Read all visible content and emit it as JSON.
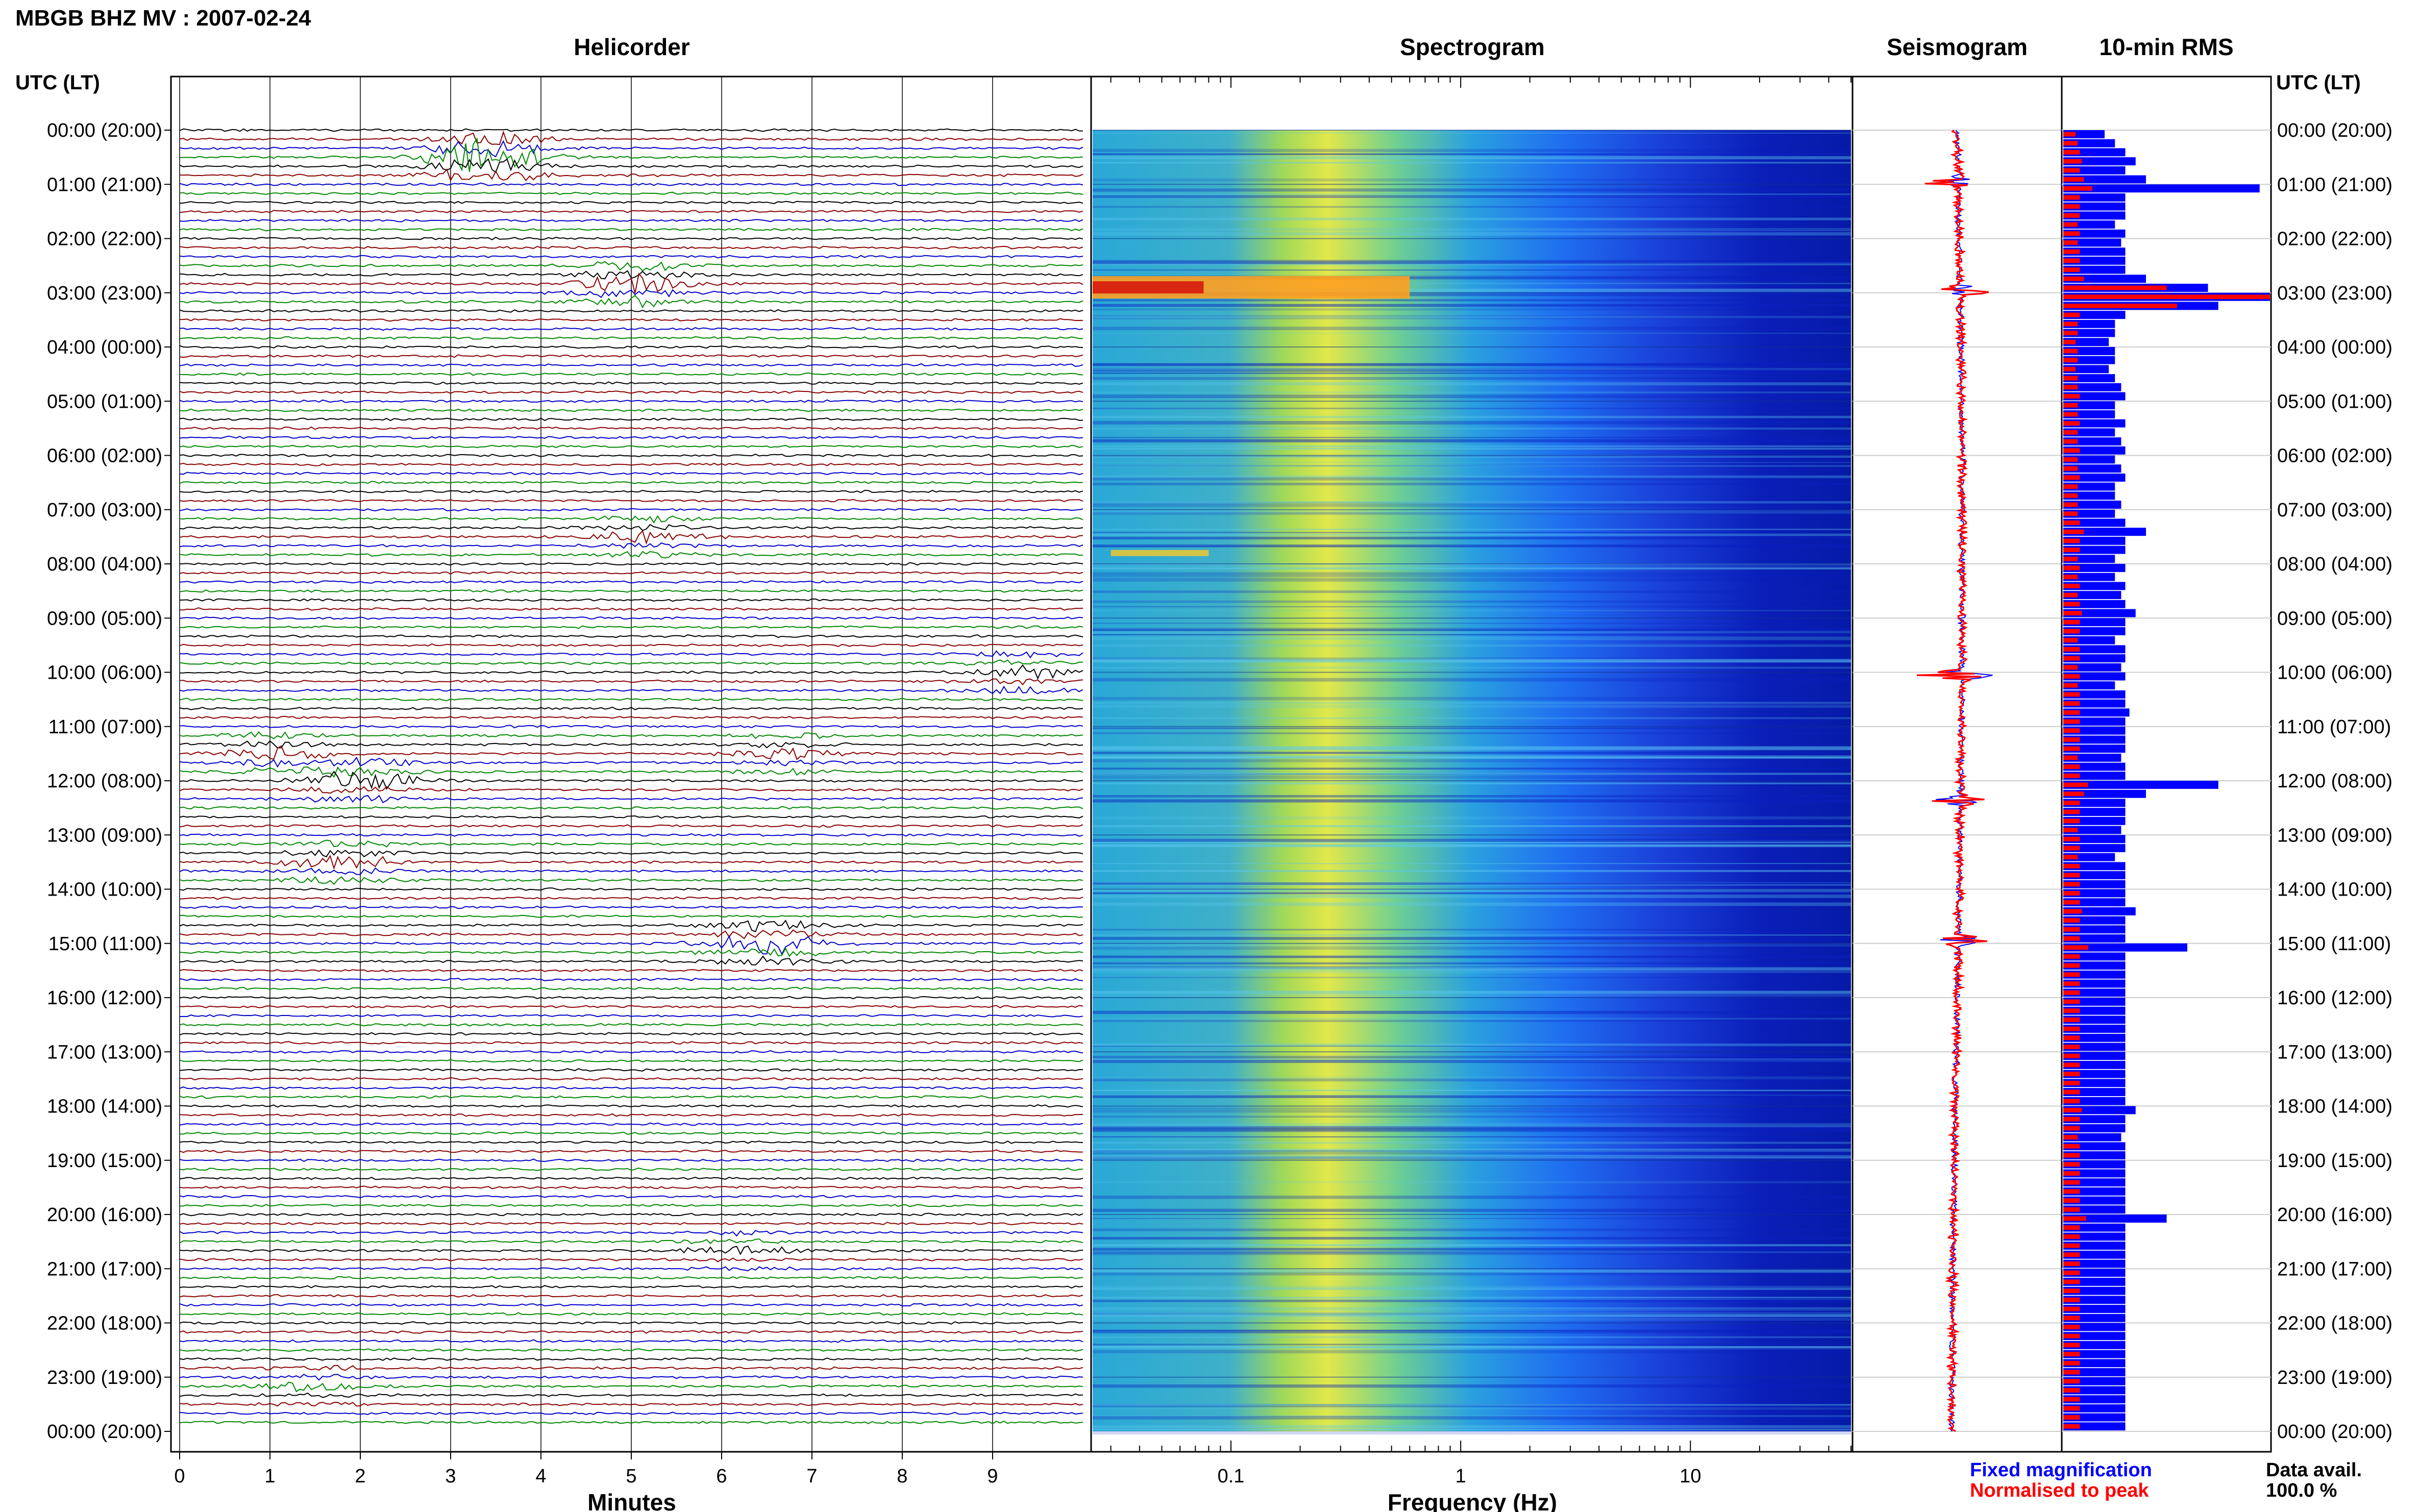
{
  "header": {
    "station_title": "MBGB BHZ MV : 2007-02-24",
    "utc_label": "UTC (LT)",
    "utc_label_right": "UTC (LT)"
  },
  "panels": {
    "helicorder": "Helicorder",
    "spectrogram": "Spectrogram",
    "seismogram": "Seismogram",
    "rms": "10-min RMS"
  },
  "legend": {
    "fixed": "Fixed magnification",
    "normalised": "Normalised to peak",
    "data_avail_label": "Data avail.",
    "data_avail_value": "100.0 %"
  },
  "colors": {
    "trace_cycle": [
      "#000000",
      "#8b0000",
      "#0000cc",
      "#008800"
    ],
    "fixed": "#0000ff",
    "normalised": "#ff0000"
  },
  "chart_data": [
    {
      "type": "line",
      "name": "helicorder",
      "xlabel": "Minutes",
      "x_ticks": [
        "0",
        "1",
        "2",
        "3",
        "4",
        "5",
        "6",
        "7",
        "8",
        "9"
      ],
      "xlim": [
        0,
        10
      ],
      "y_ticks": [
        "00:00 (20:00)",
        "01:00 (21:00)",
        "02:00 (22:00)",
        "03:00 (23:00)",
        "04:00 (00:00)",
        "05:00 (01:00)",
        "06:00 (02:00)",
        "07:00 (03:00)",
        "08:00 (04:00)",
        "09:00 (05:00)",
        "10:00 (06:00)",
        "11:00 (07:00)",
        "12:00 (08:00)",
        "13:00 (09:00)",
        "14:00 (10:00)",
        "15:00 (11:00)",
        "16:00 (12:00)",
        "17:00 (13:00)",
        "18:00 (14:00)",
        "19:00 (15:00)",
        "20:00 (16:00)",
        "21:00 (17:00)",
        "22:00 (18:00)",
        "23:00 (19:00)",
        "00:00 (20:00)"
      ],
      "rows": 144,
      "row_minutes": 10,
      "events": [
        {
          "hour": 0.5,
          "minute": 3.4,
          "amplitude": 5.0
        },
        {
          "hour": 2.9,
          "minute": 5.0,
          "amplitude": 3.0
        },
        {
          "hour": 7.6,
          "minute": 5.2,
          "amplitude": 1.6
        },
        {
          "hour": 10.0,
          "minute": 9.3,
          "amplitude": 1.6
        },
        {
          "hour": 11.5,
          "minute": 1.0,
          "amplitude": 1.8
        },
        {
          "hour": 11.6,
          "minute": 6.7,
          "amplitude": 1.6
        },
        {
          "hour": 12.1,
          "minute": 2.0,
          "amplitude": 2.4
        },
        {
          "hour": 13.6,
          "minute": 1.8,
          "amplitude": 2.0
        },
        {
          "hour": 15.0,
          "minute": 6.5,
          "amplitude": 3.0
        },
        {
          "hour": 20.7,
          "minute": 6.2,
          "amplitude": 1.2
        },
        {
          "hour": 23.3,
          "minute": 1.5,
          "amplitude": 1.2
        }
      ]
    },
    {
      "type": "heatmap",
      "name": "spectrogram",
      "xlabel": "Frequency (Hz)",
      "x_scale": "log",
      "xlim": [
        0.025,
        50
      ],
      "x_ticks": [
        "0.1",
        "1",
        "10"
      ],
      "ylim_hours": [
        0,
        24
      ],
      "notable_energy": [
        {
          "hour": 2.9,
          "frequency_range_hz": [
            0.025,
            0.6
          ],
          "level": "high"
        },
        {
          "hour": 7.8,
          "frequency_range_hz": [
            0.03,
            0.08
          ],
          "level": "medium"
        }
      ]
    },
    {
      "type": "line",
      "name": "seismogram",
      "ylim_hours": [
        0,
        24
      ],
      "spikes_hours": [
        0.95,
        2.95,
        10.05,
        12.35,
        14.95
      ]
    },
    {
      "type": "bar",
      "name": "10-min RMS",
      "orientation": "horizontal",
      "bins": 144,
      "series": [
        {
          "name": "Fixed magnification",
          "values": [
            0.2,
            0.25,
            0.3,
            0.35,
            0.3,
            0.4,
            0.95,
            0.3,
            0.3,
            0.3,
            0.25,
            0.3,
            0.28,
            0.3,
            0.3,
            0.3,
            0.4,
            0.7,
            1.0,
            0.75,
            0.3,
            0.25,
            0.25,
            0.22,
            0.25,
            0.25,
            0.22,
            0.25,
            0.28,
            0.3,
            0.25,
            0.25,
            0.3,
            0.25,
            0.28,
            0.3,
            0.25,
            0.28,
            0.3,
            0.25,
            0.25,
            0.28,
            0.25,
            0.3,
            0.4,
            0.3,
            0.3,
            0.25,
            0.3,
            0.25,
            0.3,
            0.28,
            0.3,
            0.35,
            0.3,
            0.3,
            0.25,
            0.3,
            0.3,
            0.28,
            0.3,
            0.25,
            0.3,
            0.3,
            0.32,
            0.3,
            0.3,
            0.3,
            0.3,
            0.28,
            0.3,
            0.3,
            0.75,
            0.4,
            0.3,
            0.3,
            0.3,
            0.28,
            0.3,
            0.3,
            0.25,
            0.3,
            0.3,
            0.3,
            0.3,
            0.3,
            0.35,
            0.3,
            0.3,
            0.3,
            0.6,
            0.3,
            0.3,
            0.3,
            0.3,
            0.3,
            0.3,
            0.3,
            0.3,
            0.3,
            0.3,
            0.3,
            0.3,
            0.3,
            0.3,
            0.3,
            0.3,
            0.3,
            0.35,
            0.3,
            0.3,
            0.28,
            0.3,
            0.3,
            0.3,
            0.3,
            0.3,
            0.3,
            0.3,
            0.3,
            0.5,
            0.3,
            0.3,
            0.3,
            0.3,
            0.3,
            0.3,
            0.3,
            0.3,
            0.3,
            0.3,
            0.3,
            0.3,
            0.3,
            0.3,
            0.3,
            0.3,
            0.3,
            0.3,
            0.3,
            0.3,
            0.3,
            0.3,
            0.3
          ]
        },
        {
          "name": "Normalised to peak",
          "values": [
            0.06,
            0.07,
            0.08,
            0.09,
            0.08,
            0.1,
            0.14,
            0.08,
            0.08,
            0.08,
            0.07,
            0.08,
            0.07,
            0.08,
            0.08,
            0.08,
            0.1,
            0.5,
            1.0,
            0.55,
            0.08,
            0.07,
            0.07,
            0.06,
            0.07,
            0.07,
            0.06,
            0.07,
            0.07,
            0.08,
            0.07,
            0.07,
            0.08,
            0.07,
            0.07,
            0.08,
            0.07,
            0.07,
            0.08,
            0.07,
            0.07,
            0.07,
            0.07,
            0.08,
            0.1,
            0.08,
            0.08,
            0.07,
            0.08,
            0.07,
            0.08,
            0.07,
            0.08,
            0.09,
            0.08,
            0.08,
            0.07,
            0.08,
            0.08,
            0.07,
            0.08,
            0.07,
            0.08,
            0.08,
            0.08,
            0.08,
            0.08,
            0.08,
            0.08,
            0.07,
            0.08,
            0.08,
            0.12,
            0.1,
            0.08,
            0.08,
            0.08,
            0.07,
            0.08,
            0.08,
            0.07,
            0.08,
            0.08,
            0.08,
            0.08,
            0.08,
            0.09,
            0.08,
            0.08,
            0.08,
            0.12,
            0.08,
            0.08,
            0.08,
            0.08,
            0.08,
            0.08,
            0.08,
            0.08,
            0.08,
            0.08,
            0.08,
            0.08,
            0.08,
            0.08,
            0.08,
            0.08,
            0.08,
            0.09,
            0.08,
            0.08,
            0.07,
            0.08,
            0.08,
            0.08,
            0.08,
            0.08,
            0.08,
            0.08,
            0.08,
            0.11,
            0.08,
            0.08,
            0.08,
            0.08,
            0.08,
            0.08,
            0.08,
            0.08,
            0.08,
            0.08,
            0.08,
            0.08,
            0.08,
            0.08,
            0.08,
            0.08,
            0.08,
            0.08,
            0.08,
            0.08,
            0.08,
            0.08,
            0.08
          ]
        }
      ]
    }
  ]
}
